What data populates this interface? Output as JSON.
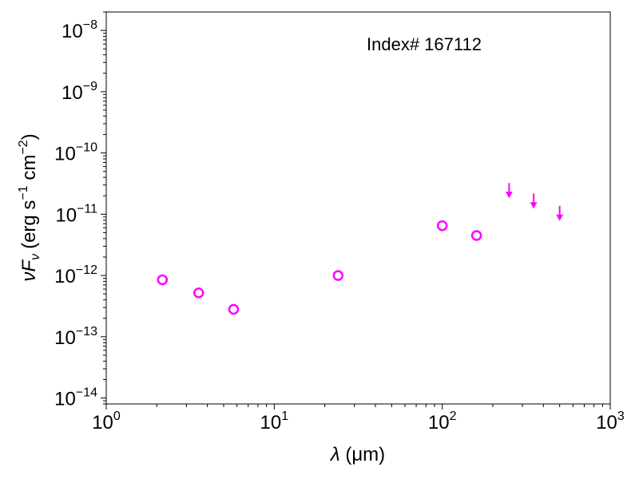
{
  "chart_data": {
    "type": "scatter",
    "annotation": "Index# 167112",
    "xlabel": {
      "symbol": "λ",
      "unit": "(μm)"
    },
    "ylabel": {
      "nu": "ν",
      "F": "F",
      "sub": "ν",
      "unit_prefix": "(erg s",
      "exp1": "−1",
      "mid": " cm",
      "exp2": "−2",
      "suffix": ")"
    },
    "xscale": "log",
    "yscale": "log",
    "xlim": [
      1,
      1000
    ],
    "ylim": [
      8e-15,
      2e-08
    ],
    "xticks": [
      {
        "value": 1,
        "base": "10",
        "exp": "0"
      },
      {
        "value": 10,
        "base": "10",
        "exp": "1"
      },
      {
        "value": 100,
        "base": "10",
        "exp": "2"
      },
      {
        "value": 1000,
        "base": "10",
        "exp": "3"
      }
    ],
    "yticks": [
      {
        "value": 1e-14,
        "base": "10",
        "exp": "−14"
      },
      {
        "value": 1e-13,
        "base": "10",
        "exp": "−13"
      },
      {
        "value": 1e-12,
        "base": "10",
        "exp": "−12"
      },
      {
        "value": 1e-11,
        "base": "10",
        "exp": "−11"
      },
      {
        "value": 1e-10,
        "base": "10",
        "exp": "−10"
      },
      {
        "value": 1e-09,
        "base": "10",
        "exp": "−9"
      },
      {
        "value": 1e-08,
        "base": "10",
        "exp": "−8"
      }
    ],
    "color": "#ff00ff",
    "detections": [
      {
        "x": 2.16,
        "y": 8.5e-13
      },
      {
        "x": 3.55,
        "y": 5.2e-13
      },
      {
        "x": 5.73,
        "y": 2.8e-13
      },
      {
        "x": 24,
        "y": 1e-12
      },
      {
        "x": 100,
        "y": 6.5e-12
      },
      {
        "x": 160,
        "y": 4.5e-12
      }
    ],
    "upper_limits": [
      {
        "x": 250,
        "y": 2e-11
      },
      {
        "x": 350,
        "y": 1.35e-11
      },
      {
        "x": 500,
        "y": 8.5e-12
      }
    ],
    "grid": false,
    "legend": "none"
  }
}
